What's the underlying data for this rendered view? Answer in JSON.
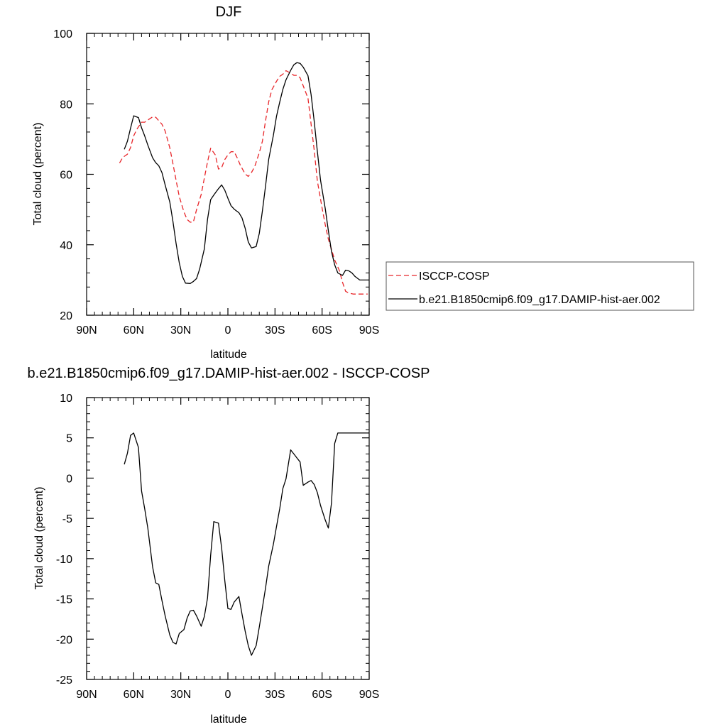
{
  "chart_data": [
    {
      "type": "line",
      "title": "DJF",
      "xlabel": "latitude",
      "ylabel": "Total cloud (percent)",
      "xlim": [
        90,
        -90
      ],
      "ylim": [
        20,
        100
      ],
      "x_ticks": [
        90,
        60,
        30,
        0,
        -30,
        -60,
        -90
      ],
      "x_tick_labels": [
        "90N",
        "60N",
        "30N",
        "0",
        "30S",
        "60S",
        "90S"
      ],
      "y_ticks": [
        20,
        40,
        60,
        80,
        100
      ],
      "y_tick_labels": [
        "20",
        "40",
        "60",
        "80",
        "100"
      ],
      "legend_position": "right-outside",
      "series": [
        {
          "name": "ISCCP-COSP",
          "color": "#e8262a",
          "dash": "dashed",
          "x": [
            69,
            67,
            64,
            62,
            60,
            58,
            55,
            53,
            51,
            48,
            46,
            44,
            42,
            40,
            37,
            35,
            33,
            31,
            28,
            26,
            24,
            22,
            20,
            17,
            15,
            13,
            11,
            8,
            6,
            4,
            2,
            0,
            -2,
            -4,
            -6,
            -8,
            -11,
            -13,
            -15,
            -17,
            -20,
            -22,
            -24,
            -26,
            -28,
            -31,
            -33,
            -35,
            -37,
            -40,
            -42,
            -44,
            -46,
            -48,
            -51,
            -53,
            -55,
            -57,
            -60,
            -62,
            -64,
            -66,
            -68,
            -71,
            -73,
            -75,
            -77,
            -80,
            -82,
            -84,
            -86,
            -88,
            -89
          ],
          "values": [
            63.2,
            64.8,
            65.7,
            67.6,
            70.9,
            72.8,
            74.8,
            74.8,
            75.4,
            76.3,
            76.2,
            75.2,
            74.2,
            72.3,
            67.5,
            63.0,
            58.3,
            53.7,
            49.3,
            47.2,
            46.4,
            46.5,
            49.9,
            54.3,
            58.9,
            63.5,
            67.4,
            65.5,
            61.5,
            61.9,
            64.2,
            65.5,
            66.4,
            66.4,
            64.6,
            62.5,
            60.1,
            59.4,
            60.5,
            62.1,
            66.1,
            69.4,
            75.3,
            80.6,
            84.0,
            86.4,
            87.8,
            88.4,
            89.4,
            88.7,
            88.1,
            88.1,
            87.4,
            85.1,
            81.6,
            74.2,
            66.8,
            58.1,
            50.4,
            45.7,
            41.6,
            38.7,
            35.7,
            32.7,
            29.4,
            26.8,
            26.3,
            26.0,
            26.0,
            26.0,
            26.0,
            26.0,
            26.0
          ]
        },
        {
          "name": "b.e21.B1850cmip6.f09_g17.DAMIP-hist-aer.002",
          "color": "#000000",
          "dash": "solid",
          "x": [
            66,
            64,
            62,
            60,
            57,
            55,
            53,
            51,
            48,
            46,
            44,
            42,
            40,
            37,
            35,
            33,
            31,
            29,
            27,
            24,
            22,
            20,
            18,
            15,
            13,
            11,
            9,
            6,
            4,
            2,
            0,
            -2,
            -4,
            -7,
            -9,
            -11,
            -13,
            -15,
            -18,
            -20,
            -22,
            -24,
            -26,
            -29,
            -31,
            -33,
            -35,
            -37,
            -40,
            -42,
            -44,
            -46,
            -48,
            -51,
            -53,
            -55,
            -57,
            -59,
            -62,
            -64,
            -66,
            -68,
            -70,
            -73,
            -75,
            -77,
            -79,
            -81,
            -84,
            -86,
            -88,
            -90
          ],
          "values": [
            67.1,
            69.4,
            73.1,
            76.6,
            76.1,
            73.2,
            70.9,
            68.3,
            64.7,
            63.3,
            62.4,
            60.5,
            57.0,
            52.1,
            46.6,
            40.4,
            34.9,
            31.0,
            29.1,
            29.0,
            29.6,
            30.4,
            33.1,
            38.8,
            47.2,
            52.8,
            54.1,
            55.9,
            57.0,
            55.5,
            53.2,
            51.1,
            50.1,
            49.1,
            47.6,
            44.7,
            40.8,
            39.1,
            39.5,
            43.2,
            49.6,
            56.8,
            64.3,
            71.1,
            76.5,
            80.5,
            84.1,
            86.8,
            89.5,
            91.1,
            91.7,
            91.5,
            90.4,
            88.0,
            82.6,
            75.0,
            66.5,
            58.3,
            50.3,
            44.0,
            38.1,
            34.3,
            32.0,
            31.3,
            32.8,
            32.6,
            32.0,
            31.0,
            30.0,
            30.0,
            30.0,
            30.0
          ]
        }
      ]
    },
    {
      "type": "line",
      "title": "b.e21.B1850cmip6.f09_g17.DAMIP-hist-aer.002 - ISCCP-COSP",
      "xlabel": "latitude",
      "ylabel": "Total cloud (percent)",
      "xlim": [
        90,
        -90
      ],
      "ylim": [
        -25,
        10
      ],
      "x_ticks": [
        90,
        60,
        30,
        0,
        -30,
        -60,
        -90
      ],
      "x_tick_labels": [
        "90N",
        "60N",
        "30N",
        "0",
        "30S",
        "60S",
        "90S"
      ],
      "y_ticks": [
        -25,
        -20,
        -15,
        -10,
        -5,
        0,
        5,
        10
      ],
      "y_tick_labels": [
        "-25",
        "-20",
        "-15",
        "-10",
        "-5",
        "0",
        "5",
        "10"
      ],
      "series": [
        {
          "color": "#000000",
          "dash": "solid",
          "x": [
            66,
            64,
            62,
            60,
            57,
            55,
            53,
            51,
            48,
            46,
            44,
            42,
            40,
            37,
            35,
            33,
            31,
            28,
            26,
            24,
            22,
            20,
            17,
            15,
            13,
            11,
            9,
            6,
            4,
            2,
            0,
            -2,
            -4,
            -7,
            -9,
            -11,
            -13,
            -15,
            -18,
            -20,
            -22,
            -24,
            -26,
            -29,
            -31,
            -33,
            -35,
            -37,
            -40,
            -42,
            -44,
            -46,
            -48,
            -51,
            -53,
            -55,
            -57,
            -59,
            -62,
            -64,
            -66,
            -68,
            -70,
            -73,
            -75,
            -77,
            -79,
            -81,
            -84,
            -86,
            -88,
            -90
          ],
          "values": [
            1.7,
            3.1,
            5.3,
            5.6,
            3.8,
            -1.6,
            -3.8,
            -6.2,
            -11.0,
            -13.0,
            -13.2,
            -15.2,
            -17.1,
            -19.5,
            -20.4,
            -20.6,
            -19.3,
            -18.8,
            -17.4,
            -16.5,
            -16.4,
            -17.1,
            -18.4,
            -17.2,
            -14.9,
            -9.6,
            -5.4,
            -5.6,
            -8.7,
            -12.7,
            -16.2,
            -16.3,
            -15.4,
            -14.7,
            -16.9,
            -19.0,
            -20.8,
            -22.0,
            -20.8,
            -18.5,
            -16.1,
            -13.6,
            -10.9,
            -8.2,
            -6.0,
            -3.8,
            -1.3,
            -0.1,
            3.5,
            3.0,
            2.5,
            2.0,
            -0.9,
            -0.5,
            -0.3,
            -0.8,
            -1.8,
            -3.4,
            -5.2,
            -6.2,
            -3.1,
            4.3,
            5.6,
            5.6,
            5.6,
            5.6,
            5.6,
            5.6,
            5.6,
            5.6,
            5.6,
            5.6
          ]
        }
      ]
    }
  ]
}
